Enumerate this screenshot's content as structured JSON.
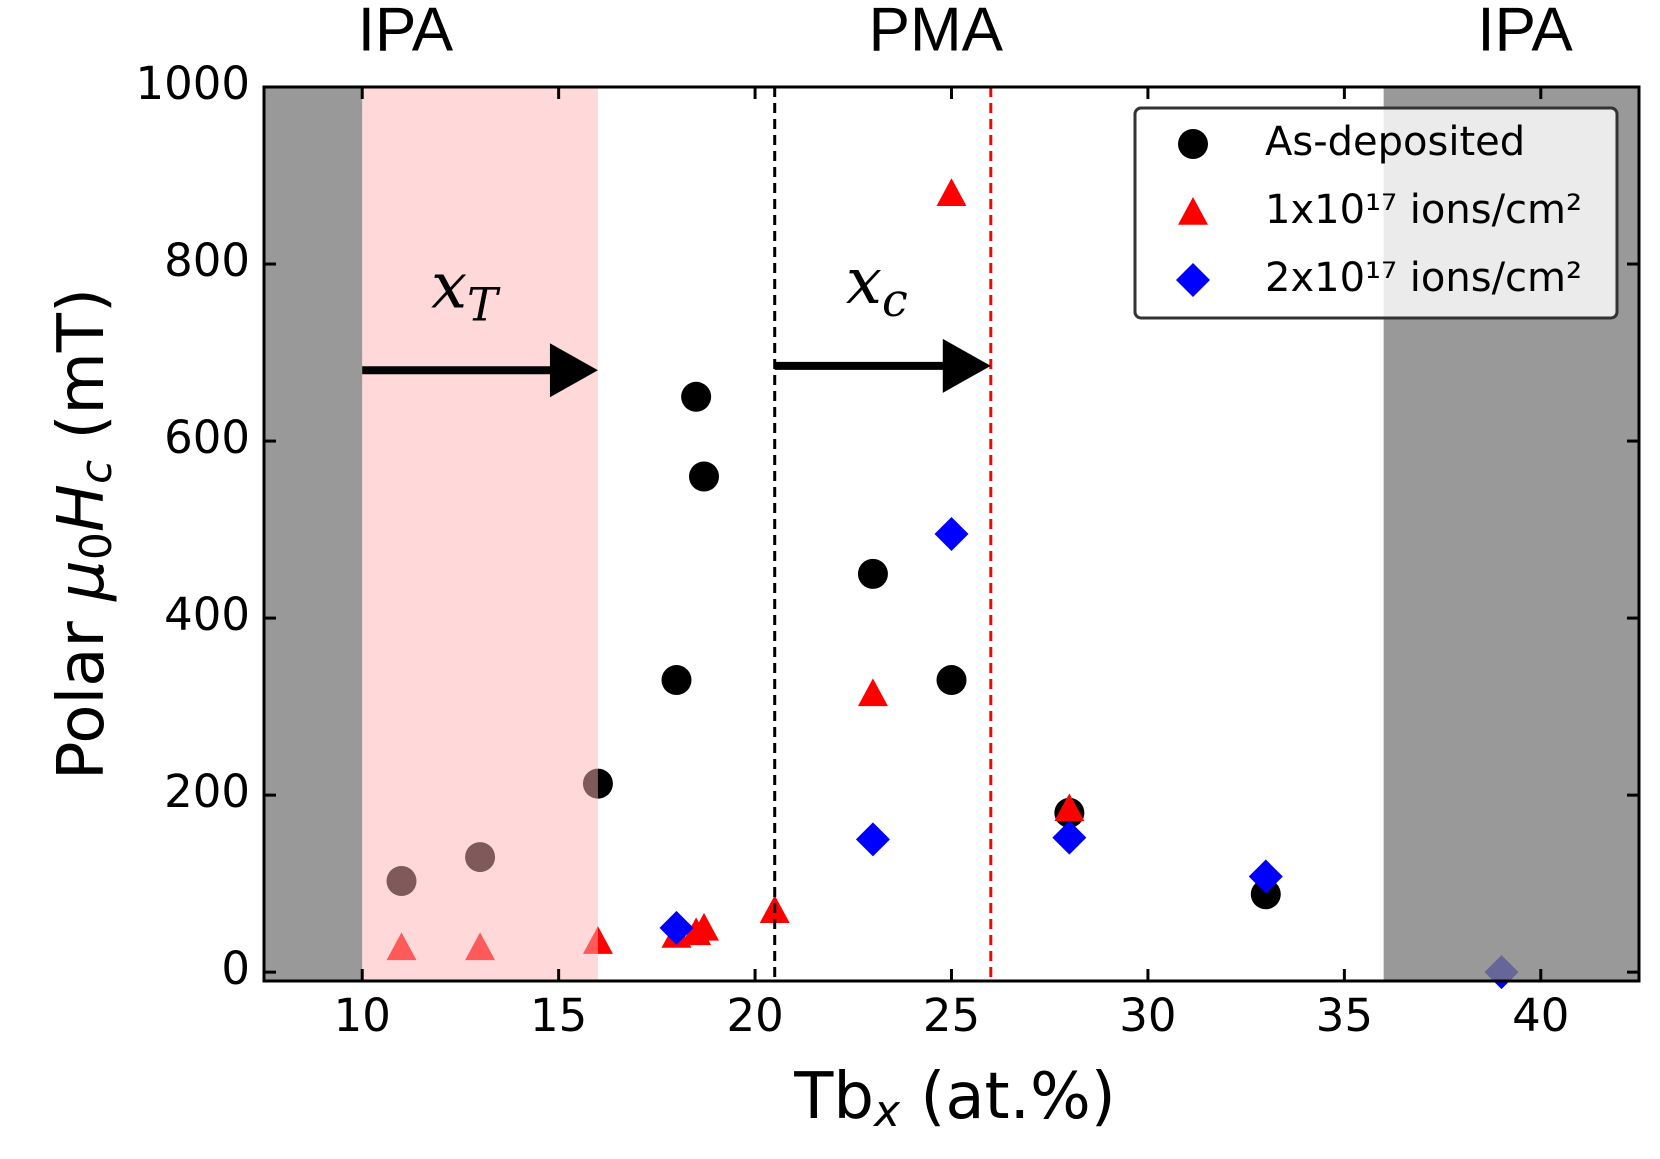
{
  "chart_data": {
    "type": "scatter",
    "xlabel": [
      "Tb",
      "x",
      " (at.%)"
    ],
    "ylabel": [
      "Polar ",
      "μ",
      "0",
      "H",
      "c",
      " (mT)"
    ],
    "xlim": [
      7.5,
      42.5
    ],
    "ylim": [
      -10,
      1000
    ],
    "xticks": [
      10,
      15,
      20,
      25,
      30,
      35,
      40
    ],
    "yticks": [
      0,
      200,
      400,
      600,
      800,
      1000
    ],
    "legend": "upper right",
    "series": [
      {
        "name": "As-deposited",
        "color": "#000000",
        "marker": "circle",
        "x": [
          11,
          13,
          16,
          18,
          18.5,
          18.7,
          23,
          25,
          28,
          33
        ],
        "values": [
          103,
          130,
          213,
          330,
          650,
          560,
          450,
          330,
          180,
          88
        ]
      },
      {
        "name": "1x10¹⁷ ions/cm²",
        "color": "#ff0000",
        "marker": "triangle",
        "x": [
          11,
          13,
          16,
          18,
          18.5,
          18.7,
          20.5,
          23,
          25,
          28
        ],
        "values": [
          28,
          28,
          35,
          42,
          45,
          50,
          70,
          315,
          880,
          185
        ]
      },
      {
        "name": "2x10¹⁷ ions/cm²",
        "color": "#0000ff",
        "marker": "diamond",
        "x": [
          18,
          23,
          25,
          28,
          33,
          39
        ],
        "values": [
          50,
          150,
          495,
          152,
          108,
          0
        ]
      }
    ],
    "shaded_regions": [
      {
        "x": [
          7.5,
          10
        ],
        "color": "#808080"
      },
      {
        "x": [
          10,
          16
        ],
        "color": "#ffb3b3"
      },
      {
        "x": [
          36,
          42.5
        ],
        "color": "#808080"
      }
    ],
    "vlines": [
      {
        "x": 20.5,
        "color": "#000000"
      },
      {
        "x": 26,
        "color": "#ff0000"
      }
    ],
    "arrows": [
      {
        "x": [
          10,
          16
        ],
        "y": 680,
        "label": "x",
        "sub": "T",
        "label_x": 12.6,
        "label_y": 770
      },
      {
        "x": [
          20.5,
          26
        ],
        "y": 685,
        "label": "x",
        "sub": "c",
        "label_x": 23.1,
        "label_y": 775
      }
    ],
    "region_labels": [
      {
        "text": "IPA",
        "x": 11.1
      },
      {
        "text": "PMA",
        "x": 24.6
      },
      {
        "text": "IPA",
        "x": 39.6
      }
    ]
  }
}
